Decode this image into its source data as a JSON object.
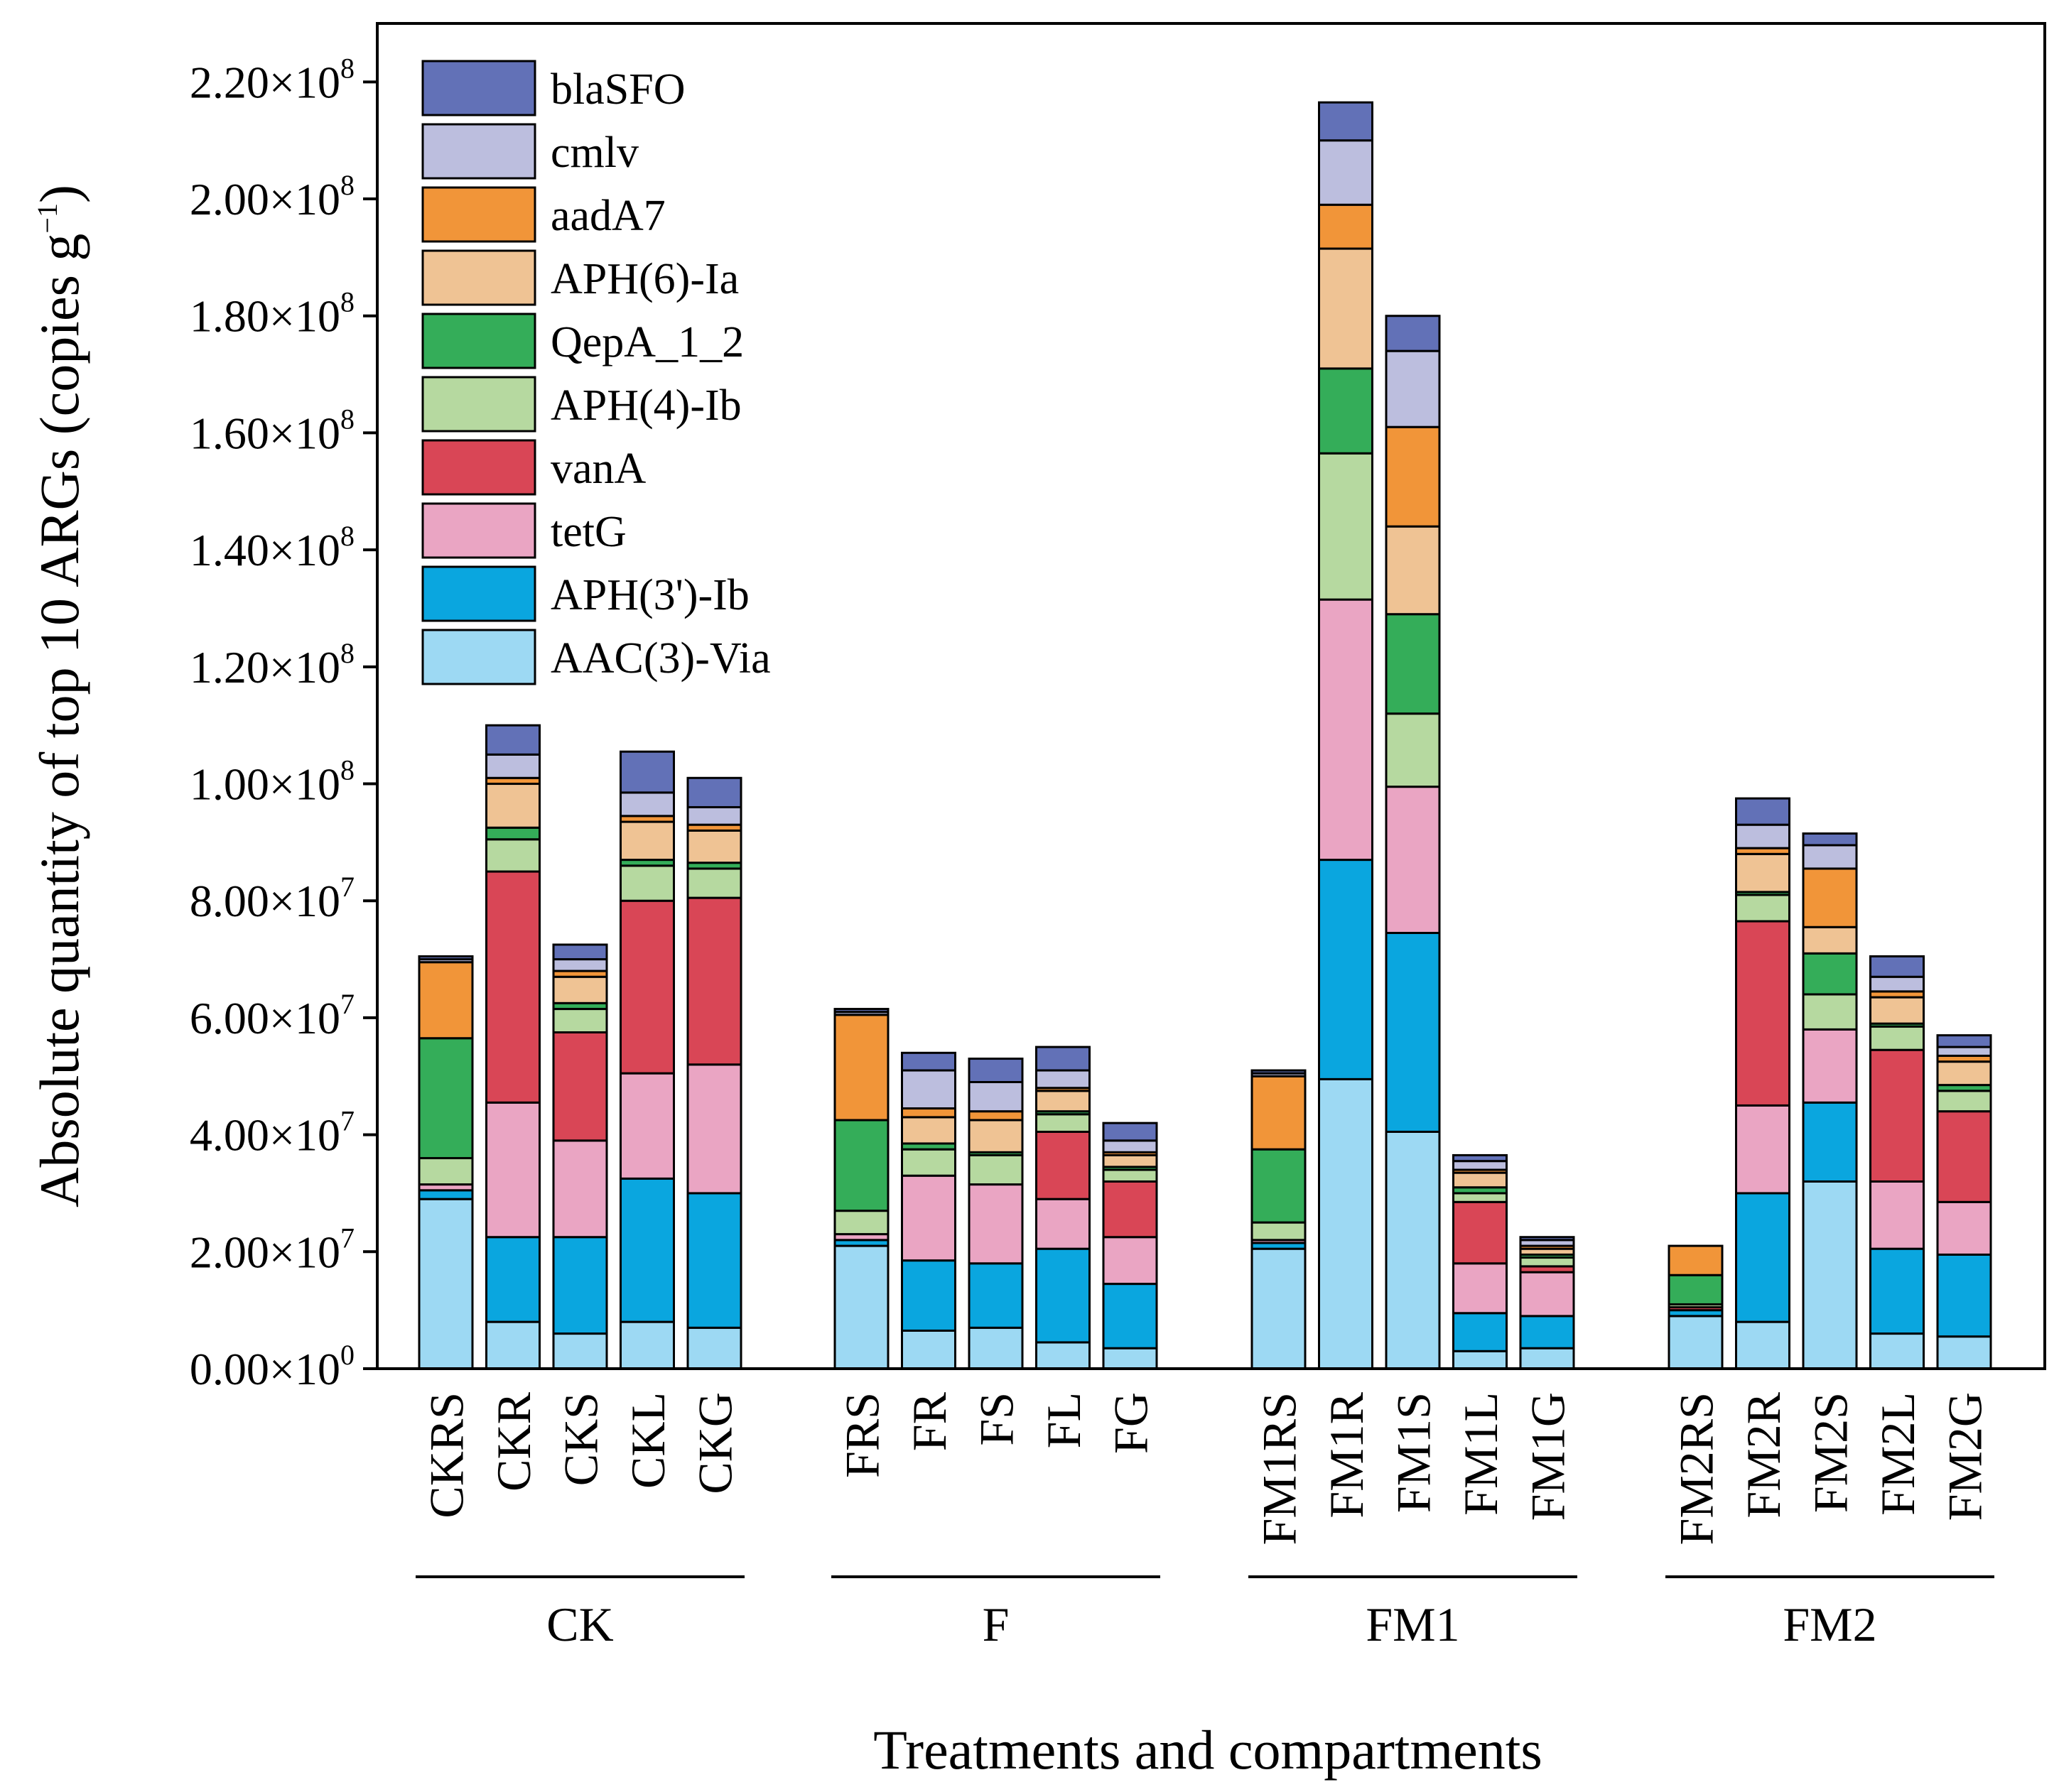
{
  "chart_data": {
    "type": "bar",
    "stacked": true,
    "title": "",
    "ylabel": "Absolute quantity of top 10 ARGs (copies g",
    "ylabel_sup": "−1",
    "ylabel_end": ")",
    "xlabel": "Treatments and compartments",
    "ylim": [
      0,
      230000000
    ],
    "grid": false,
    "legend_position": "top-left",
    "y_ticks": [
      {
        "value": 0,
        "mantissa": "0.00",
        "exp": "0"
      },
      {
        "value": 20000000,
        "mantissa": "2.00",
        "exp": "7"
      },
      {
        "value": 40000000,
        "mantissa": "4.00",
        "exp": "7"
      },
      {
        "value": 60000000,
        "mantissa": "6.00",
        "exp": "7"
      },
      {
        "value": 80000000,
        "mantissa": "8.00",
        "exp": "7"
      },
      {
        "value": 100000000,
        "mantissa": "1.00",
        "exp": "8"
      },
      {
        "value": 120000000,
        "mantissa": "1.20",
        "exp": "8"
      },
      {
        "value": 140000000,
        "mantissa": "1.40",
        "exp": "8"
      },
      {
        "value": 160000000,
        "mantissa": "1.60",
        "exp": "8"
      },
      {
        "value": 180000000,
        "mantissa": "1.80",
        "exp": "8"
      },
      {
        "value": 200000000,
        "mantissa": "2.00",
        "exp": "8"
      },
      {
        "value": 220000000,
        "mantissa": "2.20",
        "exp": "8"
      }
    ],
    "groups": [
      {
        "label": "CK",
        "categories": [
          "CKRS",
          "CKR",
          "CKS",
          "CKL",
          "CKG"
        ]
      },
      {
        "label": "F",
        "categories": [
          "FRS",
          "FR",
          "FS",
          "FL",
          "FG"
        ]
      },
      {
        "label": "FM1",
        "categories": [
          "FM1RS",
          "FM1R",
          "FM1S",
          "FM1L",
          "FM1G"
        ]
      },
      {
        "label": "FM2",
        "categories": [
          "FM2RS",
          "FM2R",
          "FM2S",
          "FM2L",
          "FM2G"
        ]
      }
    ],
    "categories": [
      "CKRS",
      "CKR",
      "CKS",
      "CKL",
      "CKG",
      "FRS",
      "FR",
      "FS",
      "FL",
      "FG",
      "FM1RS",
      "FM1R",
      "FM1S",
      "FM1L",
      "FM1G",
      "FM2RS",
      "FM2R",
      "FM2S",
      "FM2L",
      "FM2G"
    ],
    "series": [
      {
        "name": "AAC(3)-Via",
        "color": "#9dd9f3",
        "values": [
          29000000,
          8000000,
          6000000,
          8000000,
          7000000,
          21000000,
          6500000,
          7000000,
          4500000,
          3500000,
          20500000,
          49500000,
          40500000,
          3000000,
          3500000,
          9000000,
          8000000,
          32000000,
          6000000,
          5500000
        ]
      },
      {
        "name": "APH(3')-Ib",
        "color": "#0aa6df",
        "values": [
          1500000,
          14500000,
          16500000,
          24500000,
          23000000,
          1000000,
          12000000,
          11000000,
          16000000,
          11000000,
          1000000,
          37500000,
          34000000,
          6500000,
          5500000,
          1000000,
          22000000,
          13500000,
          14500000,
          14000000
        ]
      },
      {
        "name": "tetG",
        "color": "#eaa5c3",
        "values": [
          1000000,
          23000000,
          16500000,
          18000000,
          22000000,
          1000000,
          14500000,
          13500000,
          8500000,
          8000000,
          500000,
          44500000,
          25000000,
          8500000,
          7500000,
          0,
          15000000,
          12500000,
          11500000,
          9000000
        ]
      },
      {
        "name": "vanA",
        "color": "#d94656",
        "values": [
          0,
          39500000,
          18500000,
          29500000,
          28500000,
          0,
          0,
          0,
          11500000,
          9500000,
          0,
          0,
          0,
          10500000,
          1000000,
          500000,
          31500000,
          0,
          22500000,
          15500000
        ]
      },
      {
        "name": "APH(4)-Ib",
        "color": "#b6d9a0",
        "values": [
          4500000,
          5500000,
          4000000,
          6000000,
          5000000,
          4000000,
          4500000,
          5000000,
          3000000,
          2000000,
          3000000,
          25000000,
          12500000,
          1500000,
          1500000,
          500000,
          4500000,
          6000000,
          4000000,
          3500000
        ]
      },
      {
        "name": "QepA_1_2",
        "color": "#34ad59",
        "values": [
          20500000,
          2000000,
          1000000,
          1000000,
          1000000,
          15500000,
          1000000,
          500000,
          500000,
          500000,
          12500000,
          14500000,
          17000000,
          1000000,
          500000,
          5000000,
          500000,
          7000000,
          500000,
          1000000
        ]
      },
      {
        "name": "APH(6)-Ia",
        "color": "#efc394",
        "values": [
          0,
          7500000,
          4500000,
          6500000,
          5500000,
          0,
          4500000,
          5500000,
          3500000,
          2000000,
          0,
          20500000,
          15000000,
          2500000,
          1000000,
          0,
          6500000,
          4500000,
          4500000,
          4000000
        ]
      },
      {
        "name": "aadA7",
        "color": "#f19539",
        "values": [
          13000000,
          1000000,
          1000000,
          1000000,
          1000000,
          18000000,
          1500000,
          1500000,
          500000,
          500000,
          12500000,
          7500000,
          17000000,
          500000,
          500000,
          5000000,
          1000000,
          10000000,
          1000000,
          1000000
        ]
      },
      {
        "name": "cmlv",
        "color": "#bcbede",
        "values": [
          500000,
          4000000,
          2000000,
          4000000,
          3000000,
          500000,
          6500000,
          5000000,
          3000000,
          2000000,
          500000,
          11000000,
          13000000,
          1500000,
          1000000,
          0,
          4000000,
          4000000,
          2500000,
          1500000
        ]
      },
      {
        "name": "blaSFO",
        "color": "#6271b7",
        "values": [
          500000,
          5000000,
          2500000,
          7000000,
          5000000,
          500000,
          3000000,
          4000000,
          4000000,
          3000000,
          500000,
          6500000,
          6000000,
          1000000,
          500000,
          0,
          4500000,
          2000000,
          3500000,
          2000000
        ]
      }
    ],
    "legend_order": [
      "blaSFO",
      "cmlv",
      "aadA7",
      "APH(6)-Ia",
      "QepA_1_2",
      "APH(4)-Ib",
      "vanA",
      "tetG",
      "APH(3')-Ib",
      "AAC(3)-Via"
    ]
  }
}
